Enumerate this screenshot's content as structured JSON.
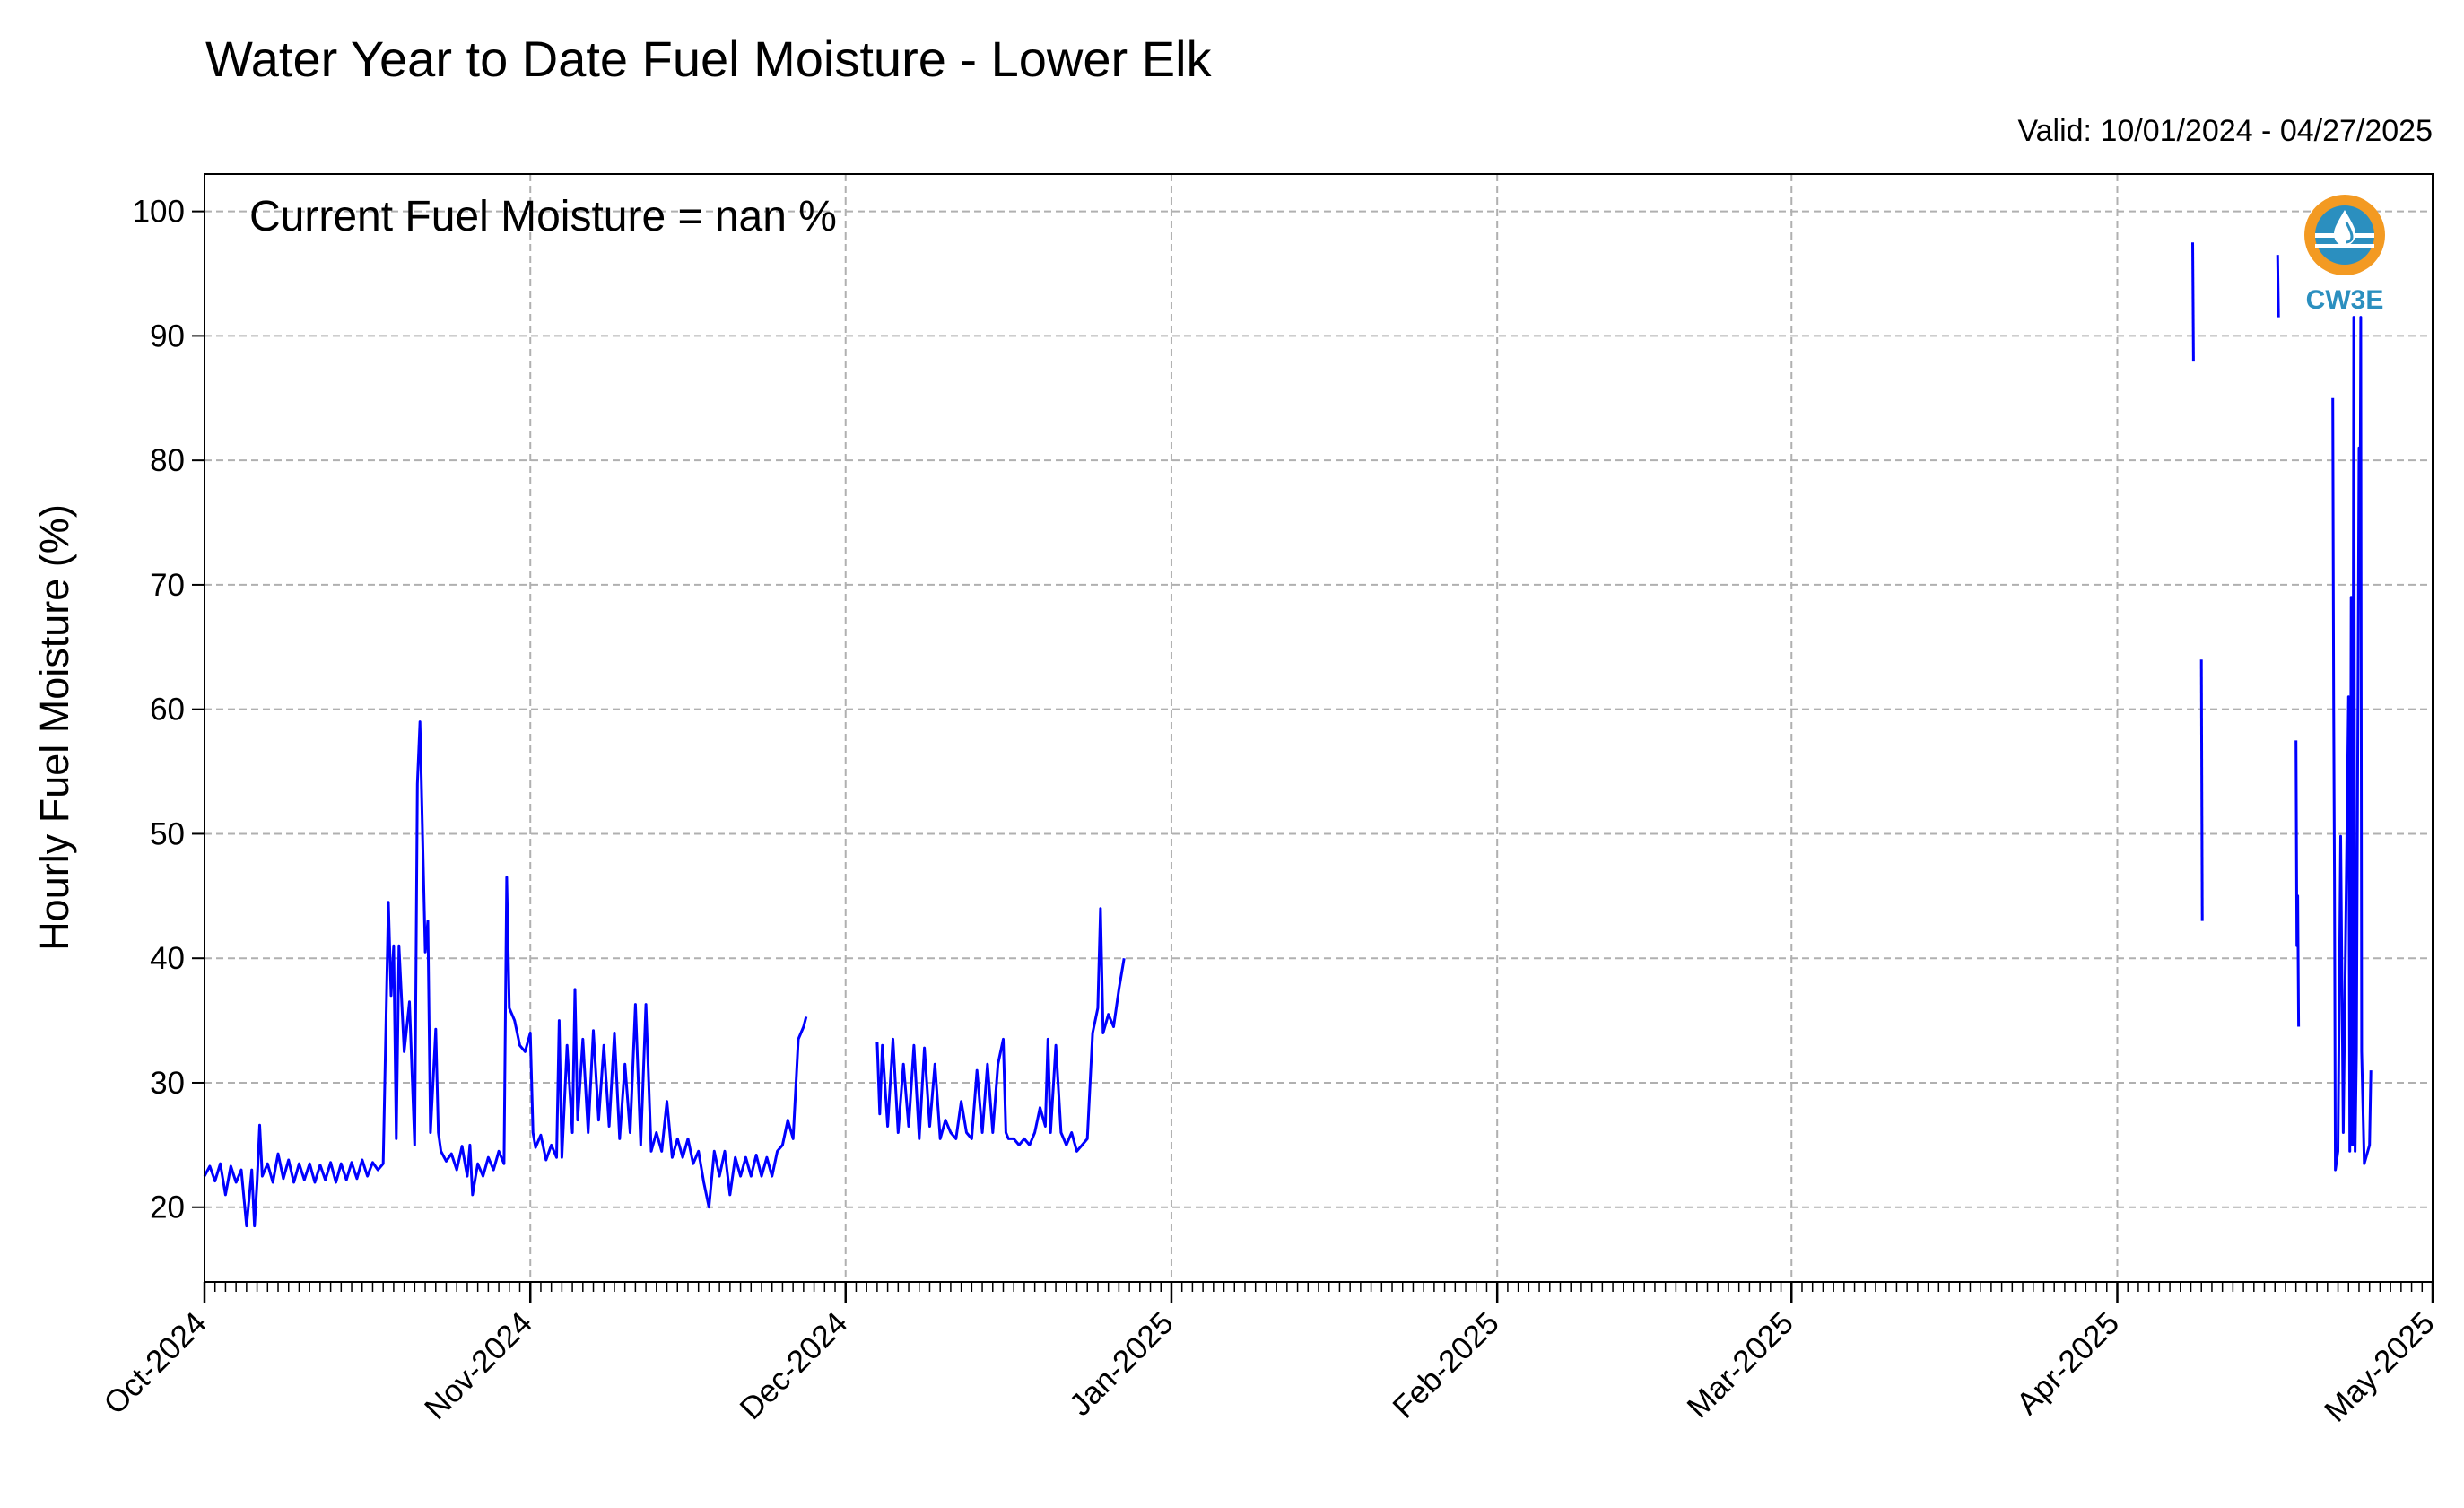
{
  "chart_data": {
    "type": "line",
    "title": "Water Year to Date Fuel Moisture - Lower Elk",
    "valid_range": "Valid: 10/01/2024 - 04/27/2025",
    "annotation": "Current Fuel Moisture = nan %",
    "xlabel": "",
    "ylabel": "Hourly Fuel Moisture (%)",
    "x_range": [
      "2024-10-01",
      "2025-05-01"
    ],
    "ylim": [
      14,
      103
    ],
    "yticks": [
      20,
      30,
      40,
      50,
      60,
      70,
      80,
      90,
      100
    ],
    "xticks": [
      {
        "date": "2024-10-01",
        "label": "Oct-2024"
      },
      {
        "date": "2024-11-01",
        "label": "Nov-2024"
      },
      {
        "date": "2024-12-01",
        "label": "Dec-2024"
      },
      {
        "date": "2025-01-01",
        "label": "Jan-2025"
      },
      {
        "date": "2025-02-01",
        "label": "Feb-2025"
      },
      {
        "date": "2025-03-01",
        "label": "Mar-2025"
      },
      {
        "date": "2025-04-01",
        "label": "Apr-2025"
      },
      {
        "date": "2025-05-01",
        "label": "May-2025"
      }
    ],
    "grid": true,
    "line_color": "#0000ff",
    "series": [
      {
        "segments": [
          [
            [
              "2024-10-01T00",
              22.5
            ],
            [
              "2024-10-01T12",
              23.3
            ],
            [
              "2024-10-02T00",
              22.1
            ],
            [
              "2024-10-02T12",
              23.5
            ],
            [
              "2024-10-03T00",
              21.0
            ],
            [
              "2024-10-03T12",
              23.3
            ],
            [
              "2024-10-04T00",
              22.0
            ],
            [
              "2024-10-04T12",
              23.0
            ],
            [
              "2024-10-05T00",
              18.5
            ],
            [
              "2024-10-05T12",
              23.0
            ],
            [
              "2024-10-05T18",
              18.5
            ],
            [
              "2024-10-06T00",
              22.0
            ],
            [
              "2024-10-06T06",
              26.6
            ],
            [
              "2024-10-06T12",
              22.5
            ],
            [
              "2024-10-07T00",
              23.5
            ],
            [
              "2024-10-07T12",
              22.0
            ],
            [
              "2024-10-08T00",
              24.3
            ],
            [
              "2024-10-08T12",
              22.3
            ],
            [
              "2024-10-09T00",
              23.8
            ],
            [
              "2024-10-09T12",
              22.0
            ],
            [
              "2024-10-10T00",
              23.5
            ],
            [
              "2024-10-10T12",
              22.2
            ],
            [
              "2024-10-11T00",
              23.5
            ],
            [
              "2024-10-11T12",
              22.0
            ],
            [
              "2024-10-12T00",
              23.4
            ],
            [
              "2024-10-12T12",
              22.2
            ],
            [
              "2024-10-13T00",
              23.6
            ],
            [
              "2024-10-13T12",
              22.0
            ],
            [
              "2024-10-14T00",
              23.5
            ],
            [
              "2024-10-14T12",
              22.2
            ],
            [
              "2024-10-15T00",
              23.6
            ],
            [
              "2024-10-15T12",
              22.3
            ],
            [
              "2024-10-16T00",
              23.8
            ],
            [
              "2024-10-16T12",
              22.5
            ],
            [
              "2024-10-17T00",
              23.6
            ],
            [
              "2024-10-17T12",
              23.0
            ],
            [
              "2024-10-18T00",
              23.5
            ],
            [
              "2024-10-18T12",
              44.5
            ],
            [
              "2024-10-18T18",
              37.0
            ],
            [
              "2024-10-19T00",
              41.0
            ],
            [
              "2024-10-19T06",
              25.5
            ],
            [
              "2024-10-19T12",
              41.0
            ],
            [
              "2024-10-20T00",
              32.5
            ],
            [
              "2024-10-20T12",
              36.5
            ],
            [
              "2024-10-21T00",
              25.0
            ],
            [
              "2024-10-21T06",
              54.0
            ],
            [
              "2024-10-21T12",
              59.0
            ],
            [
              "2024-10-22T00",
              40.5
            ],
            [
              "2024-10-22T06",
              43.0
            ],
            [
              "2024-10-22T12",
              26.0
            ],
            [
              "2024-10-23T00",
              34.3
            ],
            [
              "2024-10-23T06",
              26.0
            ],
            [
              "2024-10-23T12",
              24.5
            ],
            [
              "2024-10-24T00",
              23.7
            ],
            [
              "2024-10-24T12",
              24.3
            ],
            [
              "2024-10-25T00",
              23.0
            ],
            [
              "2024-10-25T12",
              24.9
            ],
            [
              "2024-10-26T00",
              22.5
            ],
            [
              "2024-10-26T06",
              25.0
            ],
            [
              "2024-10-26T12",
              21.0
            ],
            [
              "2024-10-27T00",
              23.5
            ],
            [
              "2024-10-27T12",
              22.5
            ],
            [
              "2024-10-28T00",
              24.0
            ],
            [
              "2024-10-28T12",
              23.0
            ],
            [
              "2024-10-29T00",
              24.5
            ],
            [
              "2024-10-29T12",
              23.5
            ],
            [
              "2024-10-29T18",
              46.5
            ],
            [
              "2024-10-30T00",
              36.0
            ],
            [
              "2024-10-30T12",
              35.0
            ],
            [
              "2024-10-31T00",
              33.0
            ],
            [
              "2024-10-31T12",
              32.5
            ],
            [
              "2024-11-01T00",
              34.0
            ],
            [
              "2024-11-01T06",
              26.0
            ],
            [
              "2024-11-01T12",
              24.8
            ],
            [
              "2024-11-02T00",
              25.8
            ],
            [
              "2024-11-02T12",
              23.8
            ],
            [
              "2024-11-03T00",
              25.0
            ],
            [
              "2024-11-03T12",
              24.0
            ],
            [
              "2024-11-03T18",
              35.0
            ],
            [
              "2024-11-04T00",
              24.0
            ],
            [
              "2024-11-04T12",
              33.0
            ],
            [
              "2024-11-05T00",
              26.0
            ],
            [
              "2024-11-05T06",
              37.5
            ],
            [
              "2024-11-05T12",
              27.0
            ],
            [
              "2024-11-06T00",
              33.5
            ],
            [
              "2024-11-06T12",
              26.0
            ],
            [
              "2024-11-07T00",
              34.2
            ],
            [
              "2024-11-07T12",
              27.0
            ],
            [
              "2024-11-08T00",
              33.0
            ],
            [
              "2024-11-08T12",
              26.5
            ],
            [
              "2024-11-09T00",
              34.0
            ],
            [
              "2024-11-09T12",
              25.5
            ],
            [
              "2024-11-10T00",
              31.5
            ],
            [
              "2024-11-10T12",
              26.0
            ],
            [
              "2024-11-11T00",
              36.3
            ],
            [
              "2024-11-11T12",
              25.0
            ],
            [
              "2024-11-12T00",
              36.3
            ],
            [
              "2024-11-12T12",
              24.5
            ],
            [
              "2024-11-13T00",
              26.0
            ],
            [
              "2024-11-13T12",
              24.5
            ],
            [
              "2024-11-14T00",
              28.5
            ],
            [
              "2024-11-14T12",
              24.0
            ],
            [
              "2024-11-15T00",
              25.5
            ],
            [
              "2024-11-15T12",
              24.0
            ],
            [
              "2024-11-16T00",
              25.5
            ],
            [
              "2024-11-16T12",
              23.5
            ],
            [
              "2024-11-17T00",
              24.5
            ],
            [
              "2024-11-17T12",
              22.0
            ],
            [
              "2024-11-18T00",
              20.0
            ],
            [
              "2024-11-18T12",
              24.5
            ],
            [
              "2024-11-19T00",
              22.5
            ],
            [
              "2024-11-19T12",
              24.5
            ],
            [
              "2024-11-20T00",
              21.0
            ],
            [
              "2024-11-20T12",
              24.0
            ],
            [
              "2024-11-21T00",
              22.5
            ],
            [
              "2024-11-21T12",
              24.0
            ],
            [
              "2024-11-22T00",
              22.5
            ],
            [
              "2024-11-22T12",
              24.2
            ],
            [
              "2024-11-23T00",
              22.5
            ],
            [
              "2024-11-23T12",
              24.0
            ],
            [
              "2024-11-24T00",
              22.5
            ],
            [
              "2024-11-24T12",
              24.5
            ],
            [
              "2024-11-25T00",
              25.0
            ],
            [
              "2024-11-25T12",
              27.0
            ],
            [
              "2024-11-26T00",
              25.5
            ],
            [
              "2024-11-26T12",
              33.5
            ],
            [
              "2024-11-27T00",
              34.5
            ],
            [
              "2024-11-27T06",
              35.3
            ]
          ],
          [
            [
              "2024-12-04T00",
              33.3
            ],
            [
              "2024-12-04T06",
              27.5
            ],
            [
              "2024-12-04T12",
              33.0
            ],
            [
              "2024-12-05T00",
              26.5
            ],
            [
              "2024-12-05T12",
              33.5
            ],
            [
              "2024-12-06T00",
              26.0
            ],
            [
              "2024-12-06T12",
              31.5
            ],
            [
              "2024-12-07T00",
              26.5
            ],
            [
              "2024-12-07T12",
              33.0
            ],
            [
              "2024-12-08T00",
              25.5
            ],
            [
              "2024-12-08T12",
              32.8
            ],
            [
              "2024-12-09T00",
              26.5
            ],
            [
              "2024-12-09T12",
              31.5
            ],
            [
              "2024-12-10T00",
              25.5
            ],
            [
              "2024-12-10T12",
              27.0
            ],
            [
              "2024-12-11T00",
              26.0
            ],
            [
              "2024-12-11T12",
              25.5
            ],
            [
              "2024-12-12T00",
              28.5
            ],
            [
              "2024-12-12T12",
              26.0
            ],
            [
              "2024-12-13T00",
              25.5
            ],
            [
              "2024-12-13T12",
              31.0
            ],
            [
              "2024-12-14T00",
              26.0
            ],
            [
              "2024-12-14T12",
              31.5
            ],
            [
              "2024-12-15T00",
              26.0
            ],
            [
              "2024-12-15T12",
              31.5
            ],
            [
              "2024-12-16T00",
              33.5
            ],
            [
              "2024-12-16T06",
              26.0
            ],
            [
              "2024-12-16T12",
              25.5
            ],
            [
              "2024-12-17T00",
              25.5
            ],
            [
              "2024-12-17T12",
              25.0
            ],
            [
              "2024-12-18T00",
              25.5
            ],
            [
              "2024-12-18T12",
              25.0
            ],
            [
              "2024-12-19T00",
              26.0
            ],
            [
              "2024-12-19T12",
              28.0
            ],
            [
              "2024-12-20T00",
              26.5
            ],
            [
              "2024-12-20T06",
              33.5
            ],
            [
              "2024-12-20T12",
              26.0
            ],
            [
              "2024-12-21T00",
              33.0
            ],
            [
              "2024-12-21T12",
              26.0
            ],
            [
              "2024-12-22T00",
              25.0
            ],
            [
              "2024-12-22T12",
              26.0
            ],
            [
              "2024-12-23T00",
              24.5
            ],
            [
              "2024-12-23T12",
              25.0
            ],
            [
              "2024-12-24T00",
              25.5
            ],
            [
              "2024-12-24T12",
              34.0
            ],
            [
              "2024-12-25T00",
              36.0
            ],
            [
              "2024-12-25T06",
              44.0
            ],
            [
              "2024-12-25T12",
              34.0
            ],
            [
              "2024-12-26T00",
              35.5
            ],
            [
              "2024-12-26T12",
              34.5
            ],
            [
              "2024-12-27T00",
              37.5
            ],
            [
              "2024-12-27T12",
              40.0
            ]
          ],
          [
            [
              "2025-04-08T04",
              97.5
            ],
            [
              "2025-04-08T06",
              88.0
            ]
          ],
          [
            [
              "2025-04-09T00",
              64.0
            ],
            [
              "2025-04-09T02",
              43.0
            ]
          ],
          [
            [
              "2025-04-16T06",
              96.5
            ],
            [
              "2025-04-16T08",
              91.5
            ]
          ],
          [
            [
              "2025-04-18T00",
              57.5
            ],
            [
              "2025-04-18T02",
              41.0
            ],
            [
              "2025-04-18T04",
              45.0
            ],
            [
              "2025-04-18T06",
              34.5
            ]
          ],
          [
            [
              "2025-04-21T12",
              85.0
            ],
            [
              "2025-04-21T14",
              60.5
            ],
            [
              "2025-04-21T16",
              46.5
            ],
            [
              "2025-04-21T18",
              23.0
            ],
            [
              "2025-04-22T00",
              24.5
            ],
            [
              "2025-04-22T06",
              49.8
            ],
            [
              "2025-04-22T12",
              26.0
            ],
            [
              "2025-04-23T00",
              61.0
            ],
            [
              "2025-04-23T03",
              24.5
            ],
            [
              "2025-04-23T06",
              69.0
            ],
            [
              "2025-04-23T09",
              25.0
            ],
            [
              "2025-04-23T12",
              91.5
            ],
            [
              "2025-04-23T15",
              24.5
            ],
            [
              "2025-04-23T18",
              32.5
            ],
            [
              "2025-04-24T00",
              81.0
            ],
            [
              "2025-04-24T02",
              72.5
            ],
            [
              "2025-04-24T04",
              91.5
            ],
            [
              "2025-04-24T06",
              32.5
            ],
            [
              "2025-04-24T12",
              23.5
            ],
            [
              "2025-04-25T00",
              25.0
            ],
            [
              "2025-04-25T03",
              31.0
            ]
          ]
        ]
      }
    ]
  },
  "logo": {
    "text": "CW3E",
    "ring_color": "#f39a22",
    "accent_color": "#2b8fbf"
  }
}
